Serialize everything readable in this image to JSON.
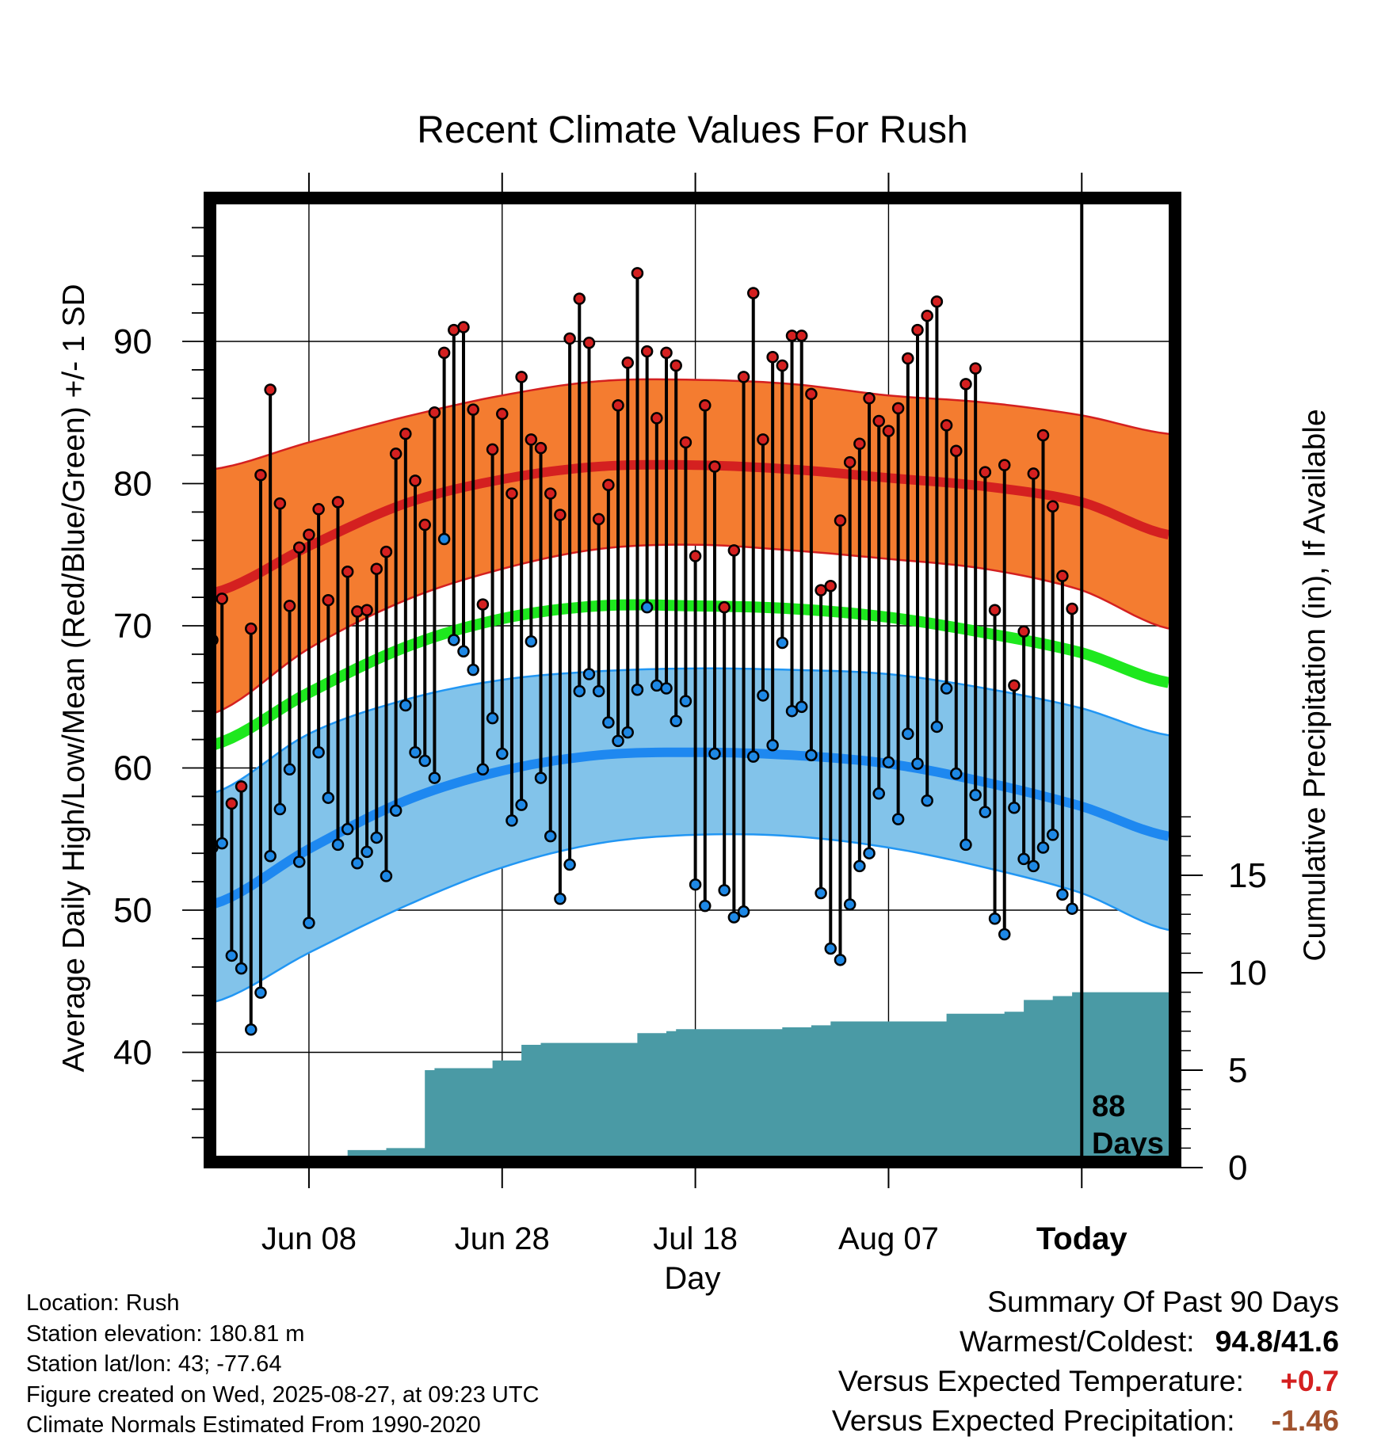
{
  "chart_data": {
    "type": "line",
    "title": "Recent Climate Values For Rush",
    "xlabel": "Day",
    "ylabel": "Average Daily High/Low/Mean (Red/Blue/Green) +/- 1 SD",
    "y2label": "Cumulative Precipitation (in), If Available",
    "x_start_offset": -90,
    "x_end_offset": 9,
    "xlim": [
      -90,
      9
    ],
    "ylim": [
      32,
      100
    ],
    "y2lim": [
      0,
      50
    ],
    "x_ticks": [
      {
        "offset": -80,
        "label": "Jun 08"
      },
      {
        "offset": -60,
        "label": "Jun 28"
      },
      {
        "offset": -40,
        "label": "Jul 18"
      },
      {
        "offset": -20,
        "label": "Aug 07"
      },
      {
        "offset": 0,
        "label": "Today"
      }
    ],
    "y_ticks": [
      40,
      50,
      60,
      70,
      80,
      90
    ],
    "y2_ticks": [
      0,
      5,
      10,
      15
    ],
    "today_label": "88\nDays",
    "today_label_line1": "88",
    "today_label_line2": "Days",
    "normals": {
      "x": [
        -90,
        -80,
        -70,
        -60,
        -50,
        -40,
        -30,
        -20,
        -10,
        0,
        9
      ],
      "high_mean": [
        72.3,
        75.6,
        78.6,
        80.3,
        81.2,
        81.3,
        81.0,
        80.4,
        79.8,
        78.7,
        76.4
      ],
      "high_upper": [
        81.0,
        82.9,
        84.7,
        86.2,
        87.2,
        87.3,
        87.0,
        86.2,
        85.7,
        84.8,
        83.5
      ],
      "high_lower": [
        63.8,
        68.4,
        71.8,
        74.0,
        75.4,
        75.7,
        75.3,
        74.7,
        74.0,
        72.5,
        69.8
      ],
      "mean": [
        61.6,
        65.3,
        68.5,
        70.5,
        71.4,
        71.4,
        71.2,
        70.6,
        69.5,
        68.1,
        66.0
      ],
      "low_mean": [
        50.4,
        54.3,
        57.7,
        59.8,
        60.9,
        61.1,
        60.9,
        60.3,
        59.0,
        57.3,
        55.2
      ],
      "low_upper": [
        58.2,
        62.4,
        64.8,
        66.2,
        66.8,
        67.0,
        66.9,
        66.6,
        65.6,
        64.2,
        62.3
      ],
      "low_lower": [
        43.5,
        47.0,
        50.3,
        53.0,
        54.7,
        55.3,
        55.2,
        54.4,
        53.0,
        51.2,
        48.6
      ]
    },
    "series": [
      {
        "name": "High",
        "color": "#d42020",
        "values": [
          69.0,
          71.9,
          57.5,
          58.7,
          69.8,
          80.6,
          86.6,
          78.6,
          71.4,
          75.5,
          76.4,
          78.2,
          71.8,
          78.7,
          73.8,
          71.0,
          71.1,
          74.0,
          75.2,
          82.1,
          83.5,
          80.2,
          77.1,
          85.0,
          89.2,
          90.8,
          91.0,
          85.2,
          71.5,
          82.4,
          84.9,
          79.3,
          87.5,
          83.1,
          82.5,
          79.3,
          77.8,
          90.2,
          93.0,
          89.9,
          77.5,
          79.9,
          85.5,
          88.5,
          94.8,
          89.3,
          84.6,
          89.2,
          88.3,
          82.9,
          74.9,
          85.5,
          81.2,
          71.3,
          75.3,
          87.5,
          93.4,
          83.1,
          88.9,
          88.3,
          90.4,
          90.4,
          86.3,
          72.5,
          72.8,
          77.4,
          81.5,
          82.8,
          86.0,
          84.4,
          83.7,
          85.3,
          88.8,
          90.8,
          91.8,
          92.8,
          84.1,
          82.3,
          87.0,
          88.1,
          80.8,
          71.1,
          81.3,
          65.8,
          69.6,
          80.7,
          83.4,
          78.4,
          73.5,
          71.2
        ]
      },
      {
        "name": "Low",
        "color": "#1e88e5",
        "values": [
          54.4,
          54.7,
          46.8,
          45.9,
          41.6,
          44.2,
          53.8,
          57.1,
          59.9,
          53.4,
          49.1,
          61.1,
          57.9,
          54.6,
          55.7,
          53.3,
          54.1,
          55.1,
          52.4,
          57.0,
          64.4,
          61.1,
          60.5,
          59.3,
          76.1,
          69.0,
          68.2,
          66.9,
          59.9,
          63.5,
          61.0,
          56.3,
          57.4,
          68.9,
          59.3,
          55.2,
          50.8,
          53.2,
          65.4,
          66.6,
          65.4,
          63.2,
          61.9,
          62.5,
          65.5,
          71.3,
          65.8,
          65.6,
          63.3,
          64.7,
          51.8,
          50.3,
          61.0,
          51.4,
          49.5,
          49.9,
          60.8,
          65.1,
          61.6,
          68.8,
          64.0,
          64.3,
          60.9,
          51.2,
          47.3,
          46.5,
          50.4,
          53.1,
          54.0,
          58.2,
          60.4,
          56.4,
          62.4,
          60.3,
          57.7,
          62.9,
          65.6,
          59.6,
          54.6,
          58.1,
          56.9,
          49.4,
          48.3,
          57.2,
          53.6,
          53.1,
          54.4,
          55.3,
          51.1,
          50.1
        ]
      },
      {
        "name": "Cumulative Precipitation",
        "color": "#4a9aa5",
        "x": [
          -90,
          -80,
          -78,
          -77,
          -76,
          -73,
          -72,
          -69,
          -68,
          -67,
          -63,
          -61,
          -59,
          -58,
          -56,
          -54,
          -52,
          -48,
          -46,
          -45,
          -43,
          -42,
          -38,
          -36,
          -35,
          -33,
          -31,
          -30,
          -28,
          -26,
          -24,
          -20,
          -16,
          -14,
          -12,
          -8,
          -6,
          -4,
          -3,
          -1,
          9
        ],
        "values": [
          0.0,
          0.1,
          0.3,
          0.3,
          0.9,
          0.9,
          1.0,
          1.0,
          5.0,
          5.1,
          5.1,
          5.5,
          5.5,
          6.3,
          6.4,
          6.4,
          6.4,
          6.4,
          6.9,
          6.9,
          7.0,
          7.1,
          7.1,
          7.1,
          7.1,
          7.1,
          7.2,
          7.2,
          7.3,
          7.5,
          7.5,
          7.5,
          7.5,
          7.9,
          7.9,
          8.0,
          8.6,
          8.6,
          8.8,
          9.0,
          9.0
        ]
      }
    ]
  },
  "meta": {
    "location": "Location: Rush",
    "elevation": "Station elevation: 180.81 m",
    "latlon": "Station lat/lon: 43; -77.64",
    "created": "Figure created on Wed, 2025-08-27, at 09:23 UTC",
    "normals": "Climate Normals Estimated From 1990-2020"
  },
  "summary": {
    "title": "Summary Of Past 90 Days",
    "warm_cold_label": "Warmest/Coldest:",
    "warm_cold_value": "94.8/41.6",
    "temp_label": "Versus Expected Temperature:",
    "temp_value": "+0.7",
    "temp_color": "#d42020",
    "precip_label": "Versus Expected Precipitation:",
    "precip_value": "-1.46",
    "precip_color": "#a0522d"
  },
  "colors": {
    "high_band": "#f47c30",
    "high_line": "#d42020",
    "mean_line": "#1ee81e",
    "low_band": "#82c3ea",
    "low_line": "#1e88f0",
    "low_band_edge": "#2196f3",
    "precip_fill": "#4a9aa5"
  }
}
